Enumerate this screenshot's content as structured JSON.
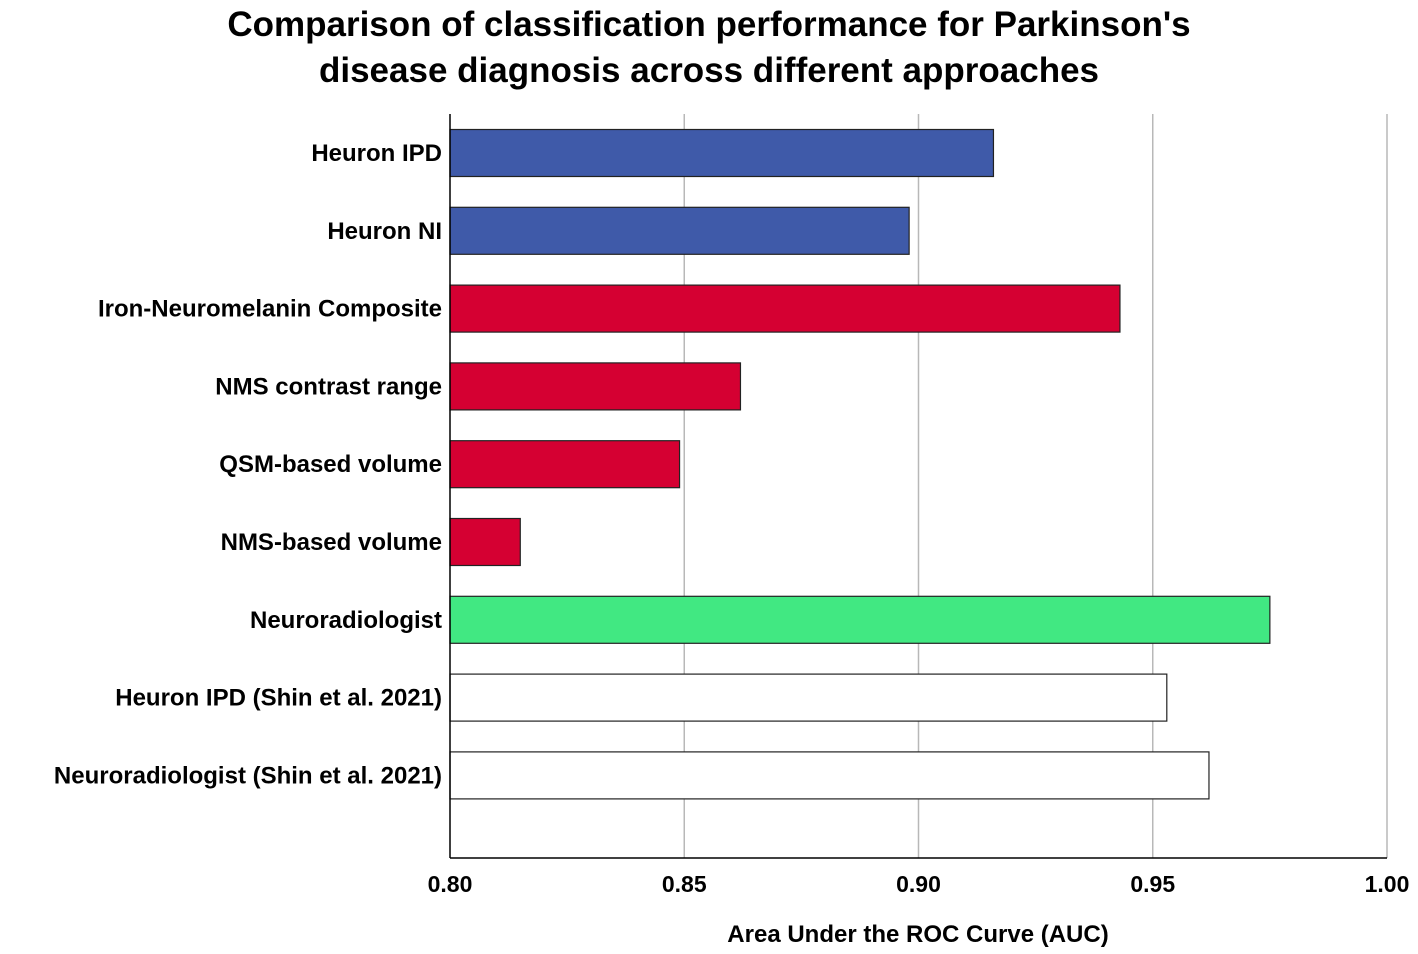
{
  "chart_data": {
    "type": "bar",
    "orientation": "horizontal",
    "title": "Comparison of classification performance for Parkinson's disease diagnosis across different approaches",
    "title_lines": [
      "Comparison of classification performance for Parkinson's",
      "disease diagnosis across different approaches"
    ],
    "xlabel": "Area Under the ROC Curve (AUC)",
    "ylabel": "",
    "xlim": [
      0.8,
      1.0
    ],
    "xticks": [
      "0.80",
      "0.85",
      "0.90",
      "0.95",
      "1.00"
    ],
    "grid": "vertical",
    "categories": [
      "Heuron IPD",
      "Heuron NI",
      "Iron-Neuromelanin Composite",
      "NMS contrast range",
      "QSM-based volume",
      "NMS-based volume",
      "Neuroradiologist",
      "Heuron IPD (Shin et al. 2021)",
      "Neuroradiologist (Shin et al. 2021)"
    ],
    "values": [
      0.916,
      0.898,
      0.943,
      0.862,
      0.849,
      0.815,
      0.975,
      0.953,
      0.962
    ],
    "bar_colors": [
      "#3f5aa9",
      "#3f5aa9",
      "#d50032",
      "#d50032",
      "#d50032",
      "#d50032",
      "#41e882",
      "#ffffff",
      "#ffffff"
    ]
  }
}
